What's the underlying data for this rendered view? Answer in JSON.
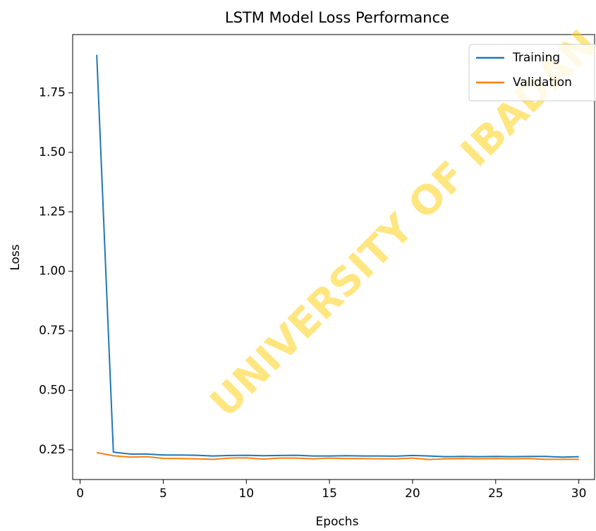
{
  "chart_data": {
    "type": "line",
    "title": "LSTM Model Loss Performance",
    "xlabel": "Epochs",
    "ylabel": "Loss",
    "watermark": "UNIVERSITY OF IBADAN",
    "x": [
      1,
      2,
      3,
      4,
      5,
      6,
      7,
      8,
      9,
      10,
      11,
      12,
      13,
      14,
      15,
      16,
      17,
      18,
      19,
      20,
      21,
      22,
      23,
      24,
      25,
      26,
      27,
      28,
      29,
      30
    ],
    "series": [
      {
        "name": "Training",
        "color": "#1f77b4",
        "values": [
          1.91,
          0.24,
          0.232,
          0.232,
          0.228,
          0.228,
          0.227,
          0.224,
          0.226,
          0.227,
          0.225,
          0.226,
          0.227,
          0.224,
          0.224,
          0.225,
          0.224,
          0.224,
          0.223,
          0.226,
          0.224,
          0.221,
          0.222,
          0.221,
          0.222,
          0.221,
          0.222,
          0.222,
          0.219,
          0.221
        ]
      },
      {
        "name": "Validation",
        "color": "#ff7f0e",
        "values": [
          0.238,
          0.225,
          0.219,
          0.221,
          0.214,
          0.213,
          0.212,
          0.21,
          0.215,
          0.216,
          0.211,
          0.215,
          0.215,
          0.212,
          0.215,
          0.213,
          0.213,
          0.212,
          0.212,
          0.215,
          0.209,
          0.212,
          0.213,
          0.212,
          0.213,
          0.212,
          0.213,
          0.21,
          0.21,
          0.21
        ]
      }
    ],
    "xlim": [
      -0.45,
      30.95
    ],
    "ylim": [
      0.125,
      1.995
    ],
    "xticks": [
      0,
      5,
      10,
      15,
      20,
      25,
      30
    ],
    "yticks": [
      0.25,
      {
        "value": 0.5,
        "label": "0.50"
      },
      0.75,
      {
        "value": 1,
        "label": "1.00"
      },
      1.25,
      {
        "value": 1.5,
        "label": "1.50"
      },
      1.75
    ],
    "legend": "upper right"
  }
}
